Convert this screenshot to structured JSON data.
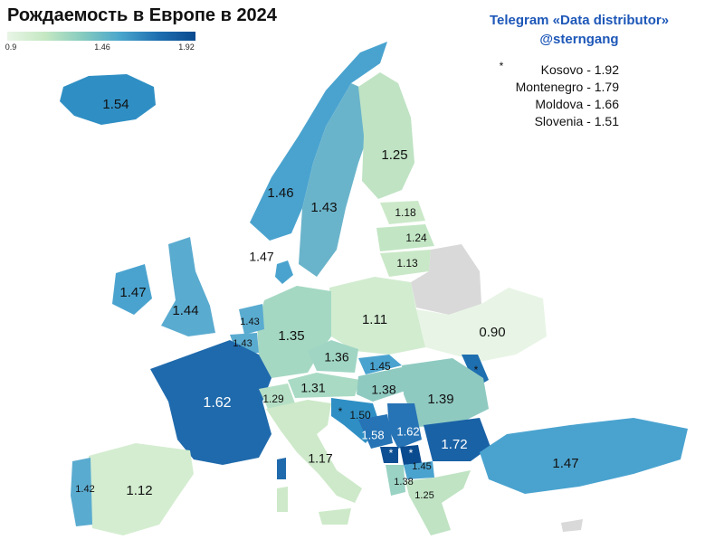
{
  "title": "Рождаемость в Европе в 2024",
  "legend": {
    "ticks": [
      "0.9",
      "1.46",
      "1.92"
    ]
  },
  "brand": {
    "line1": "Telegram «Data distributor»",
    "line2": "@sterngang"
  },
  "notes": {
    "star": "*",
    "items": [
      "Kosovo - 1.92",
      "Montenegro - 1.79",
      "Moldova - 1.66",
      "Slovenia - 1.51"
    ]
  },
  "colors": {
    "low": "#e8f5e6",
    "mid_low": "#c5e8c2",
    "mid": "#86cbbf",
    "mid_high": "#4aa6cc",
    "high": "#1e6fb0",
    "max": "#0a4a8f",
    "no_data": "#d9d9d9",
    "brand": "#1d57b8"
  },
  "countries": {
    "iceland": "1.54",
    "norway": "1.46",
    "sweden": "1.43",
    "finland": "1.25",
    "denmark": "1.47",
    "ireland": "1.47",
    "uk": "1.44",
    "netherlands": "1.43",
    "belgium": "1.43",
    "germany": "1.35",
    "poland": "1.11",
    "estonia": "1.18",
    "latvia": "1.24",
    "lithuania": "1.13",
    "ukraine": "0.90",
    "france": "1.62",
    "switzerland": "1.29",
    "austria": "1.31",
    "czechia": "1.36",
    "slovakia": "1.45",
    "hungary": "1.38",
    "romania": "1.39",
    "slovenia_croatia": "1.50",
    "bosnia": "1.58",
    "serbia": "1.62",
    "bulgaria": "1.72",
    "macedonia": "1.45",
    "albania": "1.38",
    "greece": "1.25",
    "italy": "1.17",
    "spain": "1.12",
    "portugal": "1.42",
    "turkey": "1.47"
  }
}
